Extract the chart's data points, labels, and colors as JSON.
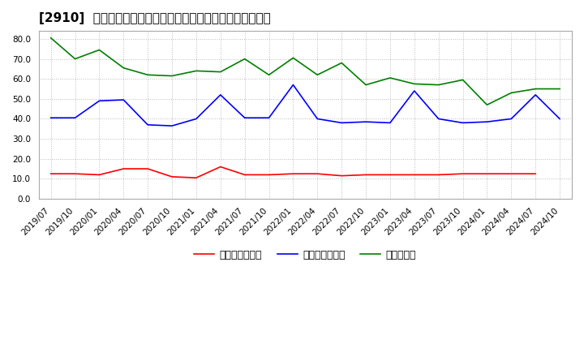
{
  "title": "[2910]  売上債権回転率、買入債務回転率、在庫回転率の推移",
  "x_labels": [
    "2019/07",
    "2019/10",
    "2020/01",
    "2020/04",
    "2020/07",
    "2020/10",
    "2021/01",
    "2021/04",
    "2021/07",
    "2021/10",
    "2022/01",
    "2022/04",
    "2022/07",
    "2022/10",
    "2023/01",
    "2023/04",
    "2023/07",
    "2023/10",
    "2024/01",
    "2024/04",
    "2024/07",
    "2024/10"
  ],
  "売上債権回転率": [
    12.5,
    12.5,
    12.0,
    15.0,
    15.0,
    11.0,
    10.5,
    16.0,
    12.0,
    12.0,
    12.5,
    12.5,
    11.5,
    12.0,
    12.0,
    12.0,
    12.0,
    12.5,
    12.5,
    12.5,
    12.5,
    null
  ],
  "買入債務回転率": [
    40.5,
    40.5,
    49.0,
    49.5,
    37.0,
    36.5,
    40.0,
    52.0,
    40.5,
    40.5,
    57.0,
    40.0,
    38.0,
    38.5,
    38.0,
    54.0,
    40.0,
    38.0,
    38.5,
    40.0,
    52.0,
    40.0
  ],
  "在庫回転率": [
    80.5,
    70.0,
    74.5,
    65.5,
    62.0,
    61.5,
    64.0,
    63.5,
    70.0,
    62.0,
    70.5,
    62.0,
    68.0,
    57.0,
    60.5,
    57.5,
    57.0,
    59.5,
    47.0,
    53.0,
    55.0,
    55.0
  ],
  "ylim": [
    0.0,
    84.0
  ],
  "yticks": [
    0.0,
    10.0,
    20.0,
    30.0,
    40.0,
    50.0,
    60.0,
    70.0,
    80.0
  ],
  "line_colors": {
    "売上債権回転率": "#ff0000",
    "買入債務回転率": "#0000ff",
    "在庫回転率": "#008000"
  },
  "legend_labels": [
    "売上債権回転率",
    "買入債務回転率",
    "在庫回転率"
  ],
  "bg_color": "#ffffff",
  "plot_bg_color": "#ffffff",
  "grid_color": "#aaaaaa",
  "title_fontsize": 11,
  "tick_fontsize": 7.5,
  "legend_fontsize": 9
}
